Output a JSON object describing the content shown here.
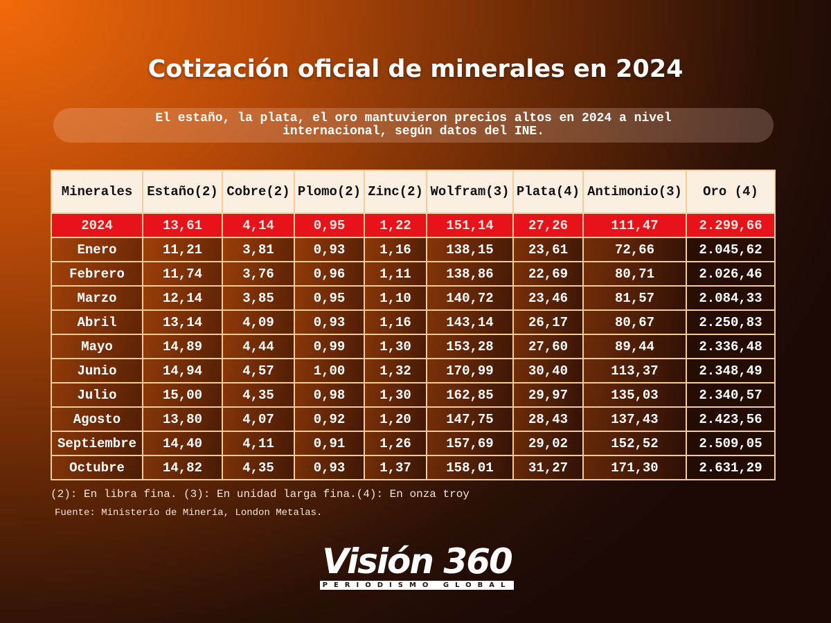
{
  "title": "Cotización oficial de minerales en 2024",
  "subtitle": "El estaño, la plata, el oro mantuvieron precios altos en 2024 a nivel internacional, según datos del INE.",
  "table": {
    "headers": [
      "Minerales",
      "Estaño(2)",
      "Cobre(2)",
      "Plomo(2)",
      "Zinc(2)",
      "Wolfram(3)",
      "Plata(4)",
      "Antimonio(3)",
      "Oro (4)"
    ],
    "total_row": [
      "2024",
      "13,61",
      "4,14",
      "0,95",
      "1,22",
      "151,14",
      "27,26",
      "111,47",
      "2.299,66"
    ],
    "rows": [
      [
        "Enero",
        "11,21",
        "3,81",
        "0,93",
        "1,16",
        "138,15",
        "23,61",
        "72,66",
        "2.045,62"
      ],
      [
        "Febrero",
        "11,74",
        "3,76",
        "0,96",
        "1,11",
        "138,86",
        "22,69",
        "80,71",
        "2.026,46"
      ],
      [
        "Marzo",
        "12,14",
        "3,85",
        "0,95",
        "1,10",
        "140,72",
        "23,46",
        "81,57",
        "2.084,33"
      ],
      [
        "Abril",
        "13,14",
        "4,09",
        "0,93",
        "1,16",
        "143,14",
        "26,17",
        "80,67",
        "2.250,83"
      ],
      [
        "Mayo",
        "14,89",
        "4,44",
        "0,99",
        "1,30",
        "153,28",
        "27,60",
        "89,44",
        "2.336,48"
      ],
      [
        "Junio",
        "14,94",
        "4,57",
        "1,00",
        "1,32",
        "170,99",
        "30,40",
        "113,37",
        "2.348,49"
      ],
      [
        "Julio",
        "15,00",
        "4,35",
        "0,98",
        "1,30",
        "162,85",
        "29,97",
        "135,03",
        "2.340,57"
      ],
      [
        "Agosto",
        "13,80",
        "4,07",
        "0,92",
        "1,20",
        "147,75",
        "28,43",
        "137,43",
        "2.423,56"
      ],
      [
        "Septiembre",
        "14,40",
        "4,11",
        "0,91",
        "1,26",
        "157,69",
        "29,02",
        "152,52",
        "2.509,05"
      ],
      [
        "Octubre",
        "14,82",
        "4,35",
        "0,93",
        "1,37",
        "158,01",
        "31,27",
        "171,30",
        "2.631,29"
      ]
    ]
  },
  "notes": "(2): En libra fina. (3): En unidad larga fina.(4): En onza troy",
  "source": "Fuente: Ministerio de Minería,  London  Metalas.",
  "logo": {
    "main": "Visión 360",
    "tagline": "PERIODISMO GLOBAL"
  },
  "colors": {
    "highlight_row": "#e8121a",
    "header_bg": "#fbefe1",
    "border": "#f3cc98"
  }
}
